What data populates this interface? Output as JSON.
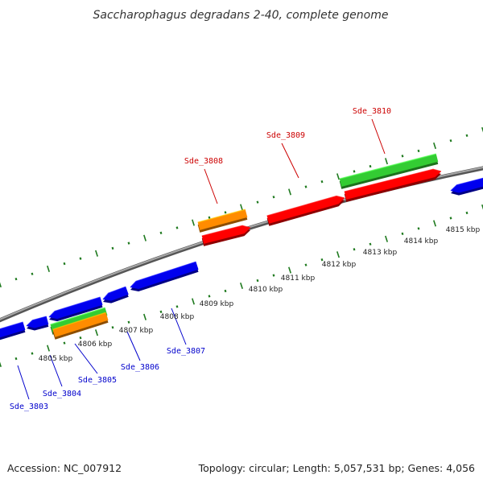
{
  "title": "Saccharophagus degradans 2-40, complete genome",
  "footer": {
    "accession": "Accession: NC_007912",
    "info": "Topology: circular; Length: 5,057,531 bp; Genes: 4,056"
  },
  "colors": {
    "backbone": "#8a8a8a",
    "ruler": "#1f7a1f",
    "forward_label": "#cc0000",
    "reverse_label": "#0000cc",
    "cds": "#0000ee",
    "cds_forward": "#ff0000",
    "gene": "#33cc33",
    "misc_feature": "#ff8c00"
  },
  "ticks": {
    "labels": [
      "4805 kbp",
      "4806 kbp",
      "4807 kbp",
      "4808 kbp",
      "4809 kbp",
      "4810 kbp",
      "4811 kbp",
      "4812 kbp",
      "4813 kbp",
      "4814 kbp",
      "4815 kbp"
    ]
  },
  "genes": [
    {
      "label": "Sde_3803",
      "strand": "reverse"
    },
    {
      "label": "Sde_3804",
      "strand": "reverse"
    },
    {
      "label": "Sde_3805",
      "strand": "reverse"
    },
    {
      "label": "Sde_3806",
      "strand": "reverse"
    },
    {
      "label": "Sde_3807",
      "strand": "reverse"
    },
    {
      "label": "Sde_3808",
      "strand": "forward"
    },
    {
      "label": "Sde_3809",
      "strand": "forward"
    },
    {
      "label": "Sde_3810",
      "strand": "forward"
    }
  ]
}
